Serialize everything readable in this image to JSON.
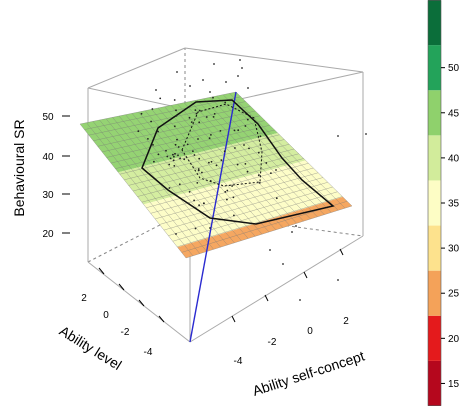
{
  "chart_data": {
    "type": "3d-surface",
    "zlabel": "Behavioural SR",
    "xlabel": "Ability self-concept",
    "ylabel": "Ability level",
    "x_ticks": [
      "-4",
      "-2",
      "0",
      "2"
    ],
    "y_ticks": [
      "-4",
      "-2",
      "0",
      "2"
    ],
    "z_ticks": [
      "20",
      "30",
      "40",
      "50"
    ],
    "legend": {
      "ticks": [
        "15",
        "20",
        "25",
        "30",
        "35",
        "40",
        "45",
        "50"
      ],
      "bands": [
        {
          "from": 12.5,
          "to": 17.5,
          "color": "#b5071d"
        },
        {
          "from": 17.5,
          "to": 22.5,
          "color": "#e41a1c"
        },
        {
          "from": 22.5,
          "to": 27.5,
          "color": "#f4a259"
        },
        {
          "from": 27.5,
          "to": 32.5,
          "color": "#fde28d"
        },
        {
          "from": 32.5,
          "to": 37.5,
          "color": "#fdfdc5"
        },
        {
          "from": 37.5,
          "to": 42.5,
          "color": "#d2ec9b"
        },
        {
          "from": 42.5,
          "to": 47.5,
          "color": "#8fd16c"
        },
        {
          "from": 47.5,
          "to": 52.5,
          "color": "#23a35a"
        },
        {
          "from": 52.5,
          "to": 57.5,
          "color": "#0b6e3a"
        }
      ]
    },
    "surface_bands": [
      {
        "color": "#8fd16c"
      },
      {
        "color": "#d2ec9b"
      },
      {
        "color": "#fdfdc5"
      },
      {
        "color": "#f4a259"
      }
    ]
  }
}
